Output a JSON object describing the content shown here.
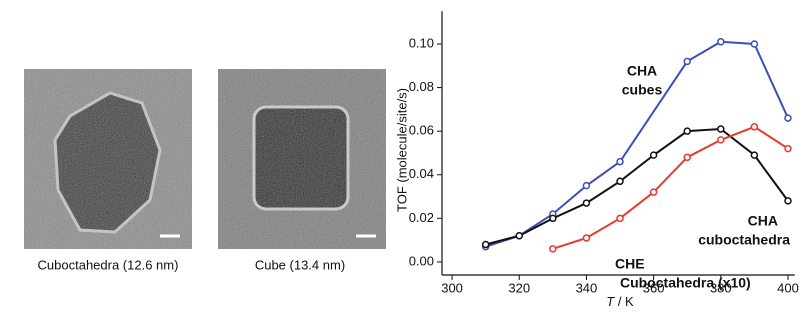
{
  "images": [
    {
      "caption": "Cuboctahedra (12.6 nm)"
    },
    {
      "caption": "Cube (13.4 nm)"
    }
  ],
  "chart_data": {
    "type": "line",
    "y_label": "TOF (molecule/site/s)",
    "x_label_var": "T",
    "x_label_unit": "/ K",
    "xlim": [
      297,
      402
    ],
    "xticks": [
      300,
      320,
      340,
      360,
      380,
      400
    ],
    "ylim": [
      -0.006,
      0.115
    ],
    "yticks": [
      {
        "value": 0,
        "label": "0.00"
      },
      {
        "value": 0.02,
        "label": "0.02"
      },
      {
        "value": 0.04,
        "label": "0.04"
      },
      {
        "value": 0.06,
        "label": "0.06"
      },
      {
        "value": 0.08,
        "label": "0.08"
      },
      {
        "value": 0.1,
        "label": "0.10"
      }
    ],
    "series": [
      {
        "color": "#3a4fb8",
        "x": [
          310,
          320,
          330,
          340,
          350,
          370,
          380,
          390,
          400
        ],
        "values": [
          0.007,
          0.012,
          0.022,
          0.035,
          0.046,
          0.092,
          0.101,
          0.1,
          0.066
        ]
      },
      {
        "color": "#111111",
        "x": [
          310,
          320,
          330,
          340,
          350,
          360,
          370,
          380,
          390,
          400
        ],
        "values": [
          0.008,
          0.012,
          0.02,
          0.027,
          0.037,
          0.049,
          0.06,
          0.061,
          0.049,
          0.028
        ]
      },
      {
        "color": "#e8392b",
        "x": [
          330,
          340,
          350,
          360,
          370,
          380,
          390,
          400
        ],
        "values": [
          0.006,
          0.011,
          0.02,
          0.032,
          0.048,
          0.056,
          0.062,
          0.052
        ]
      }
    ],
    "annotations": [
      {
        "lines": [
          "CHA",
          "cubes"
        ],
        "color": "#3a4fb8"
      },
      {
        "lines": [
          "CHA",
          "cuboctahedra"
        ],
        "color": "#111111"
      },
      {
        "lines": [
          "CHE",
          "Cuboctahedra (x10)"
        ],
        "color": "#e8392b"
      }
    ]
  }
}
